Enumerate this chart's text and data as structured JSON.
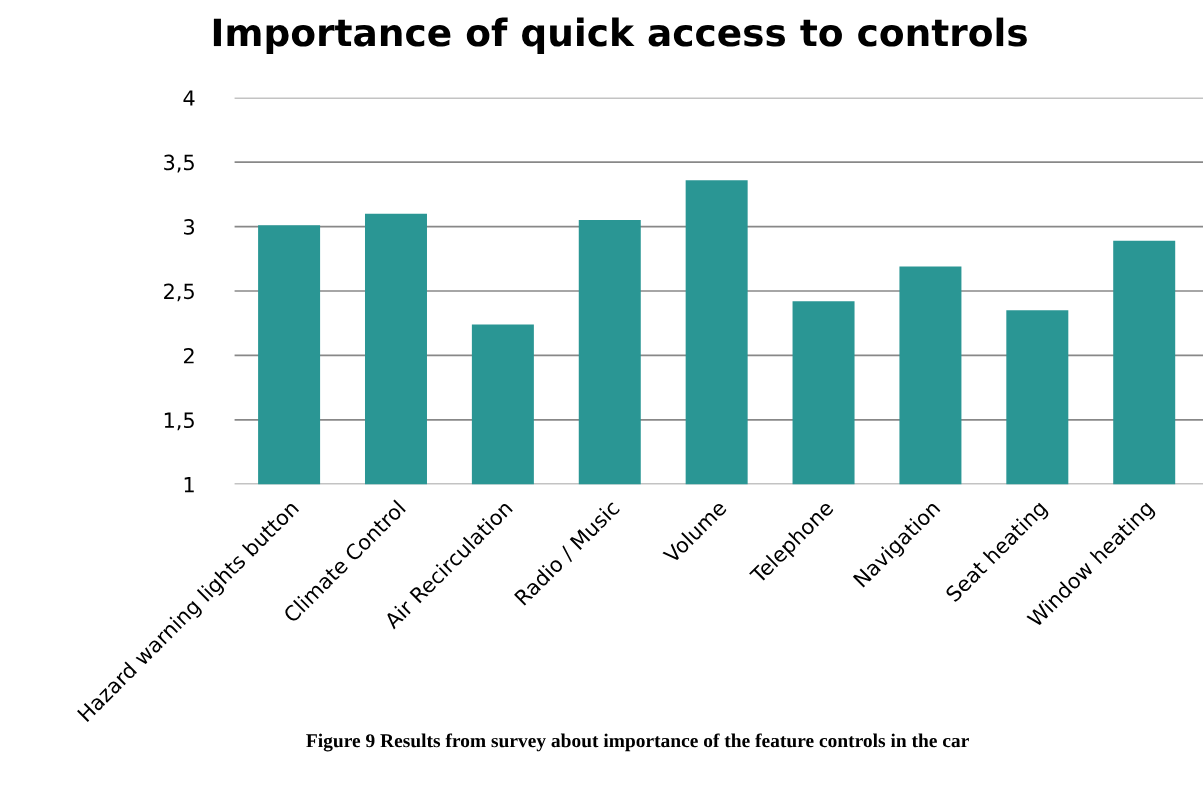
{
  "chart_data": {
    "type": "bar",
    "title": "Importance of quick access to controls",
    "categories": [
      "Hazard warning lights button",
      "Climate Control",
      "Air Recirculation",
      "Radio / Music",
      "Volume",
      "Telephone",
      "Navigation",
      "Seat heating",
      "Window heating"
    ],
    "values": [
      3.01,
      3.1,
      2.24,
      3.05,
      3.36,
      2.42,
      2.69,
      2.35,
      2.89
    ],
    "color": "#2a9694",
    "ylim": [
      1,
      4
    ],
    "yticks": [
      1,
      {
        "value": 1.5,
        "label": "1,5"
      },
      2,
      {
        "value": 2.5,
        "label": "2,5"
      },
      3,
      {
        "value": 3.5,
        "label": "3,5"
      },
      4
    ],
    "grid": "y",
    "annotations": [
      "Figure 9 Results from survey about importance of the feature controls in the car"
    ]
  }
}
